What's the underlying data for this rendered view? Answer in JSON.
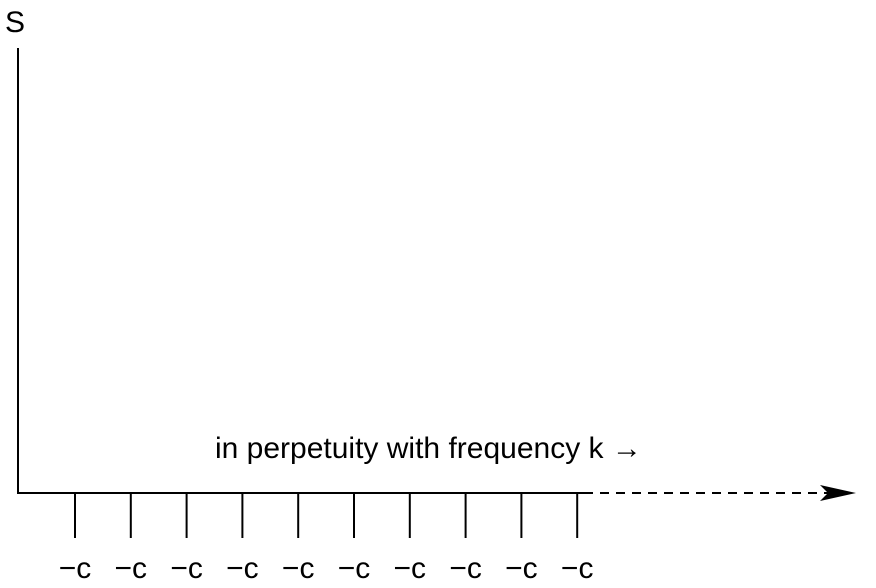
{
  "diagram": {
    "y_axis_label": "S",
    "caption": "in perpetuity with frequency k →",
    "payment_label": "−c",
    "payment_count": 10,
    "colors": {
      "line": "#000000",
      "background": "#ffffff"
    }
  }
}
